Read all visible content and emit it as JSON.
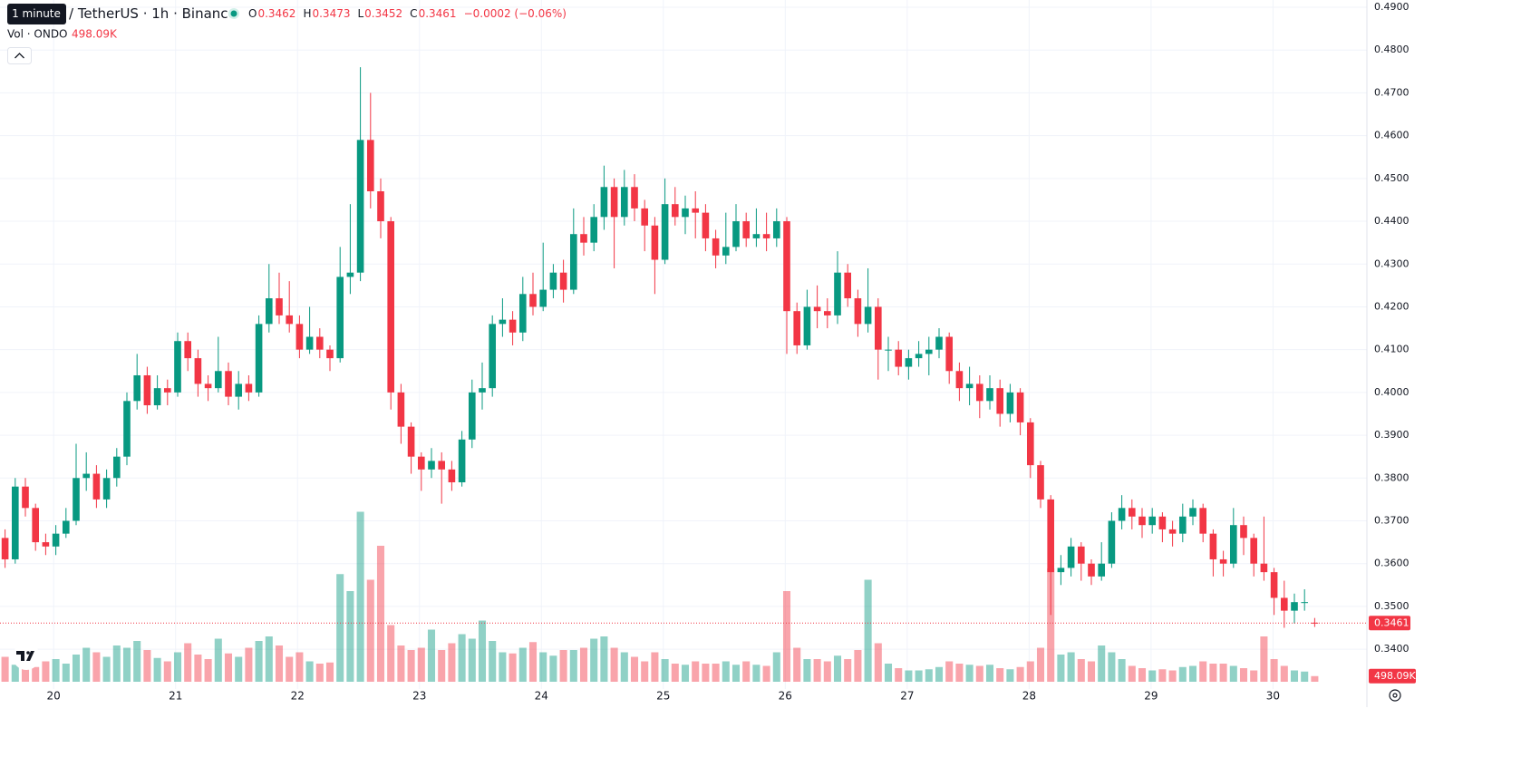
{
  "chart_data": {
    "type": "candlestick",
    "tooltip": "1 minute",
    "title": "/ TetherUS · 1h · Binance",
    "ohlc_labels": [
      "O",
      "H",
      "L",
      "C"
    ],
    "change": "−0.0002 (−0.06%)",
    "volume_title": "Vol · ONDO",
    "volume_label": "498.09K",
    "up_color": "#089981",
    "down_color": "#f23645",
    "grid": true,
    "ylim": [
      0.3307,
      0.4917
    ],
    "yticks": [
      {
        "value": 0.34,
        "label": "0.3400"
      },
      {
        "value": 0.35,
        "label": "0.3500"
      },
      {
        "value": 0.36,
        "label": "0.3600"
      },
      {
        "value": 0.37,
        "label": "0.3700"
      },
      {
        "value": 0.38,
        "label": "0.3800"
      },
      {
        "value": 0.39,
        "label": "0.3900"
      },
      {
        "value": 0.4,
        "label": "0.4000"
      },
      {
        "value": 0.41,
        "label": "0.4100"
      },
      {
        "value": 0.42,
        "label": "0.4200"
      },
      {
        "value": 0.43,
        "label": "0.4300"
      },
      {
        "value": 0.44,
        "label": "0.4400"
      },
      {
        "value": 0.45,
        "label": "0.4500"
      },
      {
        "value": 0.46,
        "label": "0.4600"
      },
      {
        "value": 0.47,
        "label": "0.4700"
      },
      {
        "value": 0.48,
        "label": "0.4800"
      },
      {
        "value": 0.49,
        "label": "0.4900"
      }
    ],
    "xlim": [
      19.56,
      30.77
    ],
    "xticks": [
      20,
      21,
      22,
      23,
      24,
      25,
      26,
      27,
      28,
      29,
      30
    ],
    "vlim": [
      0,
      16000000
    ],
    "open": [
      0.366,
      0.361,
      0.378,
      0.373,
      0.365,
      0.364,
      0.367,
      0.37,
      0.38,
      0.381,
      0.375,
      0.38,
      0.385,
      0.398,
      0.404,
      0.397,
      0.401,
      0.4,
      0.412,
      0.408,
      0.402,
      0.401,
      0.405,
      0.399,
      0.402,
      0.4,
      0.416,
      0.422,
      0.418,
      0.416,
      0.41,
      0.413,
      0.41,
      0.408,
      0.427,
      0.428,
      0.459,
      0.447,
      0.44,
      0.4,
      0.392,
      0.385,
      0.382,
      0.384,
      0.382,
      0.379,
      0.389,
      0.4,
      0.401,
      0.416,
      0.417,
      0.414,
      0.423,
      0.42,
      0.424,
      0.428,
      0.424,
      0.437,
      0.435,
      0.441,
      0.448,
      0.441,
      0.448,
      0.443,
      0.439,
      0.431,
      0.444,
      0.441,
      0.443,
      0.442,
      0.436,
      0.432,
      0.434,
      0.44,
      0.436,
      0.437,
      0.436,
      0.44,
      0.419,
      0.411,
      0.42,
      0.419,
      0.418,
      0.428,
      0.422,
      0.416,
      0.42,
      0.41,
      0.41,
      0.406,
      0.408,
      0.409,
      0.41,
      0.413,
      0.405,
      0.401,
      0.402,
      0.398,
      0.401,
      0.395,
      0.4,
      0.393,
      0.383,
      0.375,
      0.358,
      0.359,
      0.364,
      0.36,
      0.357,
      0.36,
      0.37,
      0.373,
      0.371,
      0.369,
      0.371,
      0.368,
      0.367,
      0.371,
      0.373,
      0.367,
      0.361,
      0.36,
      0.369,
      0.366,
      0.36,
      0.358,
      0.352,
      0.349,
      0.351,
      0.3462
    ],
    "high": [
      0.368,
      0.38,
      0.38,
      0.374,
      0.367,
      0.369,
      0.373,
      0.388,
      0.386,
      0.383,
      0.382,
      0.387,
      0.4,
      0.409,
      0.406,
      0.404,
      0.403,
      0.414,
      0.414,
      0.41,
      0.404,
      0.413,
      0.407,
      0.405,
      0.404,
      0.418,
      0.43,
      0.428,
      0.426,
      0.418,
      0.42,
      0.415,
      0.411,
      0.434,
      0.444,
      0.476,
      0.47,
      0.45,
      0.441,
      0.402,
      0.393,
      0.386,
      0.387,
      0.386,
      0.384,
      0.391,
      0.403,
      0.407,
      0.418,
      0.422,
      0.419,
      0.427,
      0.428,
      0.435,
      0.43,
      0.431,
      0.443,
      0.441,
      0.444,
      0.453,
      0.45,
      0.452,
      0.451,
      0.445,
      0.441,
      0.45,
      0.448,
      0.446,
      0.447,
      0.444,
      0.438,
      0.442,
      0.444,
      0.442,
      0.443,
      0.442,
      0.443,
      0.441,
      0.421,
      0.424,
      0.425,
      0.422,
      0.433,
      0.43,
      0.424,
      0.429,
      0.422,
      0.413,
      0.412,
      0.41,
      0.412,
      0.413,
      0.415,
      0.414,
      0.407,
      0.406,
      0.404,
      0.404,
      0.403,
      0.402,
      0.401,
      0.394,
      0.384,
      0.376,
      0.362,
      0.366,
      0.365,
      0.361,
      0.365,
      0.372,
      0.376,
      0.375,
      0.373,
      0.373,
      0.372,
      0.37,
      0.374,
      0.375,
      0.374,
      0.368,
      0.363,
      0.373,
      0.371,
      0.367,
      0.371,
      0.359,
      0.356,
      0.353,
      0.354,
      0.3473
    ],
    "low": [
      0.359,
      0.36,
      0.371,
      0.363,
      0.362,
      0.362,
      0.366,
      0.369,
      0.377,
      0.373,
      0.373,
      0.378,
      0.383,
      0.396,
      0.395,
      0.396,
      0.397,
      0.399,
      0.405,
      0.399,
      0.398,
      0.4,
      0.397,
      0.396,
      0.398,
      0.399,
      0.414,
      0.416,
      0.414,
      0.408,
      0.409,
      0.408,
      0.405,
      0.407,
      0.423,
      0.426,
      0.443,
      0.436,
      0.396,
      0.388,
      0.381,
      0.377,
      0.38,
      0.374,
      0.377,
      0.378,
      0.387,
      0.396,
      0.399,
      0.413,
      0.411,
      0.412,
      0.418,
      0.419,
      0.422,
      0.421,
      0.423,
      0.432,
      0.433,
      0.438,
      0.429,
      0.439,
      0.44,
      0.433,
      0.423,
      0.43,
      0.439,
      0.437,
      0.436,
      0.433,
      0.429,
      0.43,
      0.433,
      0.434,
      0.434,
      0.433,
      0.434,
      0.409,
      0.409,
      0.41,
      0.415,
      0.415,
      0.416,
      0.42,
      0.413,
      0.414,
      0.403,
      0.405,
      0.404,
      0.403,
      0.406,
      0.404,
      0.408,
      0.402,
      0.398,
      0.397,
      0.394,
      0.396,
      0.392,
      0.393,
      0.39,
      0.38,
      0.373,
      0.348,
      0.355,
      0.357,
      0.356,
      0.355,
      0.356,
      0.359,
      0.368,
      0.368,
      0.366,
      0.367,
      0.365,
      0.364,
      0.365,
      0.369,
      0.365,
      0.357,
      0.357,
      0.359,
      0.362,
      0.357,
      0.356,
      0.348,
      0.345,
      0.346,
      0.349,
      0.3452
    ],
    "close": [
      0.361,
      0.378,
      0.373,
      0.365,
      0.364,
      0.367,
      0.37,
      0.38,
      0.381,
      0.375,
      0.38,
      0.385,
      0.398,
      0.404,
      0.397,
      0.401,
      0.4,
      0.412,
      0.408,
      0.402,
      0.401,
      0.405,
      0.399,
      0.402,
      0.4,
      0.416,
      0.422,
      0.418,
      0.416,
      0.41,
      0.413,
      0.41,
      0.408,
      0.427,
      0.428,
      0.459,
      0.447,
      0.44,
      0.4,
      0.392,
      0.385,
      0.382,
      0.384,
      0.382,
      0.379,
      0.389,
      0.4,
      0.401,
      0.416,
      0.417,
      0.414,
      0.423,
      0.42,
      0.424,
      0.428,
      0.424,
      0.437,
      0.435,
      0.441,
      0.448,
      0.441,
      0.448,
      0.443,
      0.439,
      0.431,
      0.444,
      0.441,
      0.443,
      0.442,
      0.436,
      0.432,
      0.434,
      0.44,
      0.436,
      0.437,
      0.436,
      0.44,
      0.419,
      0.411,
      0.42,
      0.419,
      0.418,
      0.428,
      0.422,
      0.416,
      0.42,
      0.41,
      0.41,
      0.406,
      0.408,
      0.409,
      0.41,
      0.413,
      0.405,
      0.401,
      0.402,
      0.398,
      0.401,
      0.395,
      0.4,
      0.393,
      0.383,
      0.375,
      0.358,
      0.359,
      0.364,
      0.36,
      0.357,
      0.36,
      0.37,
      0.373,
      0.371,
      0.369,
      0.371,
      0.368,
      0.367,
      0.371,
      0.373,
      0.367,
      0.361,
      0.36,
      0.369,
      0.366,
      0.36,
      0.358,
      0.352,
      0.349,
      0.351,
      0.351,
      0.3461
    ],
    "volume": [
      2200000,
      1500000,
      1200000,
      1300000,
      1800000,
      2000000,
      1600000,
      2400000,
      3000000,
      2600000,
      2200000,
      3200000,
      3000000,
      3600000,
      2800000,
      2100000,
      1800000,
      2600000,
      3400000,
      2400000,
      2000000,
      3800000,
      2500000,
      2200000,
      3000000,
      3600000,
      4000000,
      3200000,
      2200000,
      2600000,
      1800000,
      1600000,
      1700000,
      9500000,
      8000000,
      15000000,
      9000000,
      12000000,
      5000000,
      3200000,
      2800000,
      3000000,
      4600000,
      2800000,
      3400000,
      4200000,
      3800000,
      5400000,
      3600000,
      2600000,
      2500000,
      3000000,
      3500000,
      2600000,
      2300000,
      2800000,
      2800000,
      3000000,
      3800000,
      4000000,
      3000000,
      2600000,
      2200000,
      1800000,
      2600000,
      2000000,
      1600000,
      1500000,
      1800000,
      1600000,
      1600000,
      1800000,
      1500000,
      1800000,
      1500000,
      1400000,
      2600000,
      8000000,
      3000000,
      2000000,
      2000000,
      1800000,
      2300000,
      2000000,
      2800000,
      9000000,
      3400000,
      1600000,
      1200000,
      1000000,
      1000000,
      1100000,
      1300000,
      1800000,
      1600000,
      1500000,
      1400000,
      1500000,
      1200000,
      1100000,
      1300000,
      1800000,
      3000000,
      10000000,
      2400000,
      2600000,
      2000000,
      1800000,
      3200000,
      2600000,
      2000000,
      1400000,
      1200000,
      1000000,
      1100000,
      1000000,
      1300000,
      1400000,
      1800000,
      1600000,
      1600000,
      1400000,
      1200000,
      1000000,
      4000000,
      2000000,
      1400000,
      1000000,
      900000,
      498090
    ]
  }
}
